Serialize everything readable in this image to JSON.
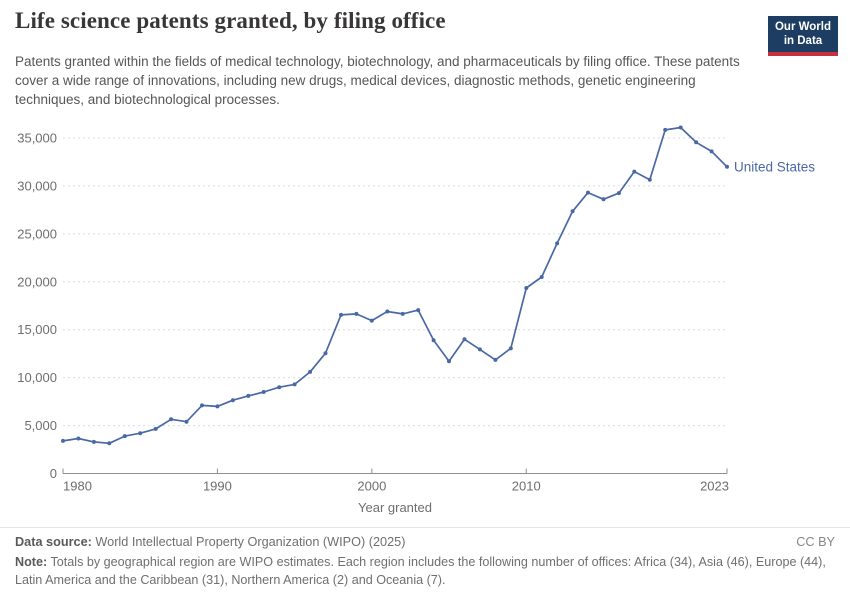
{
  "header": {
    "title": "Life science patents granted, by filing office",
    "subtitle": "Patents granted within the fields of medical technology, biotechnology, and pharmaceuticals by filing office. These patents cover a wide range of innovations, including new drugs, medical devices, diagnostic methods, genetic engineering techniques, and biotechnological processes.",
    "logo": {
      "line1": "Our World",
      "line2": "in Data",
      "bg_color": "#1d3d63",
      "accent_color": "#c9303e"
    }
  },
  "chart_data": {
    "type": "line",
    "title": "Life science patents granted, by filing office",
    "xlabel": "Year granted",
    "ylabel": "",
    "xlim": [
      1980,
      2023
    ],
    "ylim": [
      0,
      35000
    ],
    "xticks": [
      1980,
      1990,
      2000,
      2010,
      2023
    ],
    "yticks": [
      0,
      5000,
      10000,
      15000,
      20000,
      25000,
      30000,
      35000
    ],
    "grid": "horizontal-dashed",
    "legend_position": "end-of-line-label",
    "series": [
      {
        "name": "United States",
        "color": "#4a68a5",
        "x": [
          1980,
          1981,
          1982,
          1983,
          1984,
          1985,
          1986,
          1987,
          1988,
          1989,
          1990,
          1991,
          1992,
          1993,
          1994,
          1995,
          1996,
          1997,
          1998,
          1999,
          2000,
          2001,
          2002,
          2003,
          2004,
          2005,
          2006,
          2007,
          2008,
          2009,
          2010,
          2011,
          2012,
          2013,
          2014,
          2015,
          2016,
          2017,
          2018,
          2019,
          2020,
          2021,
          2022,
          2023
        ],
        "values": [
          3400,
          3650,
          3300,
          3150,
          3900,
          4200,
          4650,
          5650,
          5400,
          7100,
          7000,
          7650,
          8100,
          8500,
          9000,
          9300,
          10600,
          12550,
          16550,
          16650,
          15950,
          16900,
          16650,
          17050,
          13900,
          11700,
          14000,
          12950,
          11850,
          13050,
          19350,
          20500,
          24000,
          27350,
          29300,
          28600,
          29250,
          31500,
          30650,
          35850,
          36100,
          34550,
          33600,
          32000
        ]
      }
    ]
  },
  "footer": {
    "source_label": "Data source:",
    "source_text": "World Intellectual Property Organization (WIPO) (2025)",
    "license": "CC BY",
    "note_label": "Note:",
    "note_text": "Totals by geographical region are WIPO estimates. Each region includes the following number of offices: Africa (34), Asia (46), Europe (44), Latin America and the Caribbean (31), Northern America (2) and Oceania (7)."
  }
}
